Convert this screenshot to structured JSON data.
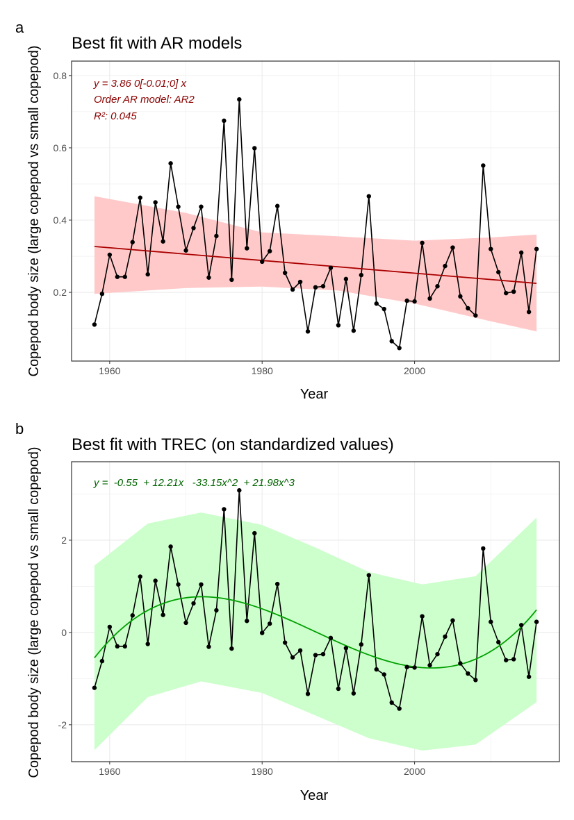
{
  "chart_data": [
    {
      "type": "line",
      "panel_label": "a",
      "title": "Best fit with AR models",
      "xlabel": "Year",
      "ylabel": "Copepod body size (large copepod vs small copepod)",
      "xlim": [
        1955,
        2019
      ],
      "ylim": [
        0.01,
        0.84
      ],
      "xticks": [
        "1960",
        "1980",
        "2000"
      ],
      "yticks": [
        "0.2",
        "0.4",
        "0.6",
        "0.8"
      ],
      "grid": true,
      "annotations": [
        "y = 3.86  0[-0.01;0] x",
        "Order AR model: AR2",
        "R²: 0.045"
      ],
      "colors": {
        "data": "#000000",
        "fit": "#aa0000",
        "band": "#ffc9c9",
        "annotation": "#8b0000"
      },
      "x": [
        1958,
        1959,
        1960,
        1961,
        1962,
        1963,
        1964,
        1965,
        1966,
        1967,
        1968,
        1969,
        1970,
        1971,
        1972,
        1973,
        1974,
        1975,
        1976,
        1977,
        1978,
        1979,
        1980,
        1981,
        1982,
        1983,
        1984,
        1985,
        1986,
        1987,
        1988,
        1989,
        1990,
        1991,
        1992,
        1993,
        1994,
        1995,
        1996,
        1997,
        1998,
        1999,
        2000,
        2001,
        2002,
        2003,
        2004,
        2005,
        2006,
        2007,
        2008,
        2009,
        2010,
        2011,
        2012,
        2013,
        2014,
        2015,
        2016
      ],
      "y": [
        0.111,
        0.196,
        0.304,
        0.243,
        0.243,
        0.339,
        0.462,
        0.25,
        0.449,
        0.341,
        0.557,
        0.437,
        0.316,
        0.378,
        0.437,
        0.241,
        0.356,
        0.675,
        0.235,
        0.734,
        0.322,
        0.599,
        0.285,
        0.314,
        0.439,
        0.254,
        0.208,
        0.229,
        0.092,
        0.214,
        0.217,
        0.268,
        0.109,
        0.237,
        0.094,
        0.248,
        0.466,
        0.169,
        0.154,
        0.065,
        0.046,
        0.177,
        0.175,
        0.337,
        0.183,
        0.217,
        0.273,
        0.324,
        0.189,
        0.156,
        0.136,
        0.551,
        0.32,
        0.256,
        0.198,
        0.202,
        0.31,
        0.146,
        0.32
      ],
      "fit": {
        "x": [
          1958,
          2016
        ],
        "y": [
          0.327,
          0.225
        ]
      },
      "band": {
        "x": [
          1958,
          1970,
          1980,
          1990,
          2000,
          2010,
          2016
        ],
        "upper": [
          0.466,
          0.42,
          0.366,
          0.355,
          0.343,
          0.352,
          0.36
        ],
        "lower": [
          0.196,
          0.212,
          0.216,
          0.205,
          0.169,
          0.12,
          0.092
        ]
      }
    },
    {
      "type": "line",
      "panel_label": "b",
      "title": "Best fit with TREC (on standardized values)",
      "xlabel": "Year",
      "ylabel": "Copepod body size (large copepod vs small copepod)",
      "xlim": [
        1955,
        2019
      ],
      "ylim": [
        -2.8,
        3.7
      ],
      "xticks": [
        "1960",
        "1980",
        "2000"
      ],
      "yticks": [
        "-2",
        "0",
        "2"
      ],
      "grid": true,
      "annotations": [
        "y =  -0.55  + 12.21x   -33.15x^2  + 21.98x^3"
      ],
      "colors": {
        "data": "#000000",
        "fit": "#00a000",
        "band": "#ccffcc",
        "annotation": "#006400"
      },
      "x": [
        1958,
        1959,
        1960,
        1961,
        1962,
        1963,
        1964,
        1965,
        1966,
        1967,
        1968,
        1969,
        1970,
        1971,
        1972,
        1973,
        1974,
        1975,
        1976,
        1977,
        1978,
        1979,
        1980,
        1981,
        1982,
        1983,
        1984,
        1985,
        1986,
        1987,
        1988,
        1989,
        1990,
        1991,
        1992,
        1993,
        1994,
        1995,
        1996,
        1997,
        1998,
        1999,
        2000,
        2001,
        2002,
        2003,
        2004,
        2005,
        2006,
        2007,
        2008,
        2009,
        2010,
        2011,
        2012,
        2013,
        2014,
        2015,
        2016
      ],
      "y": [
        -1.2,
        -0.62,
        0.12,
        -0.3,
        -0.3,
        0.37,
        1.21,
        -0.25,
        1.12,
        0.38,
        1.86,
        1.04,
        0.21,
        0.63,
        1.04,
        -0.31,
        0.48,
        2.67,
        -0.35,
        3.08,
        0.25,
        2.15,
        -0.01,
        0.19,
        1.05,
        -0.22,
        -0.54,
        -0.39,
        -1.33,
        -0.49,
        -0.47,
        -0.12,
        -1.22,
        -0.34,
        -1.32,
        -0.26,
        1.24,
        -0.8,
        -0.91,
        -1.52,
        -1.65,
        -0.75,
        -0.76,
        0.35,
        -0.71,
        -0.47,
        -0.09,
        0.26,
        -0.67,
        -0.89,
        -1.03,
        1.82,
        0.23,
        -0.21,
        -0.6,
        -0.58,
        0.16,
        -0.96,
        0.23
      ],
      "fit": {
        "coefficients": [
          -0.55,
          12.21,
          -33.15,
          21.98
        ]
      },
      "band": {
        "x": [
          1958,
          1965,
          1972,
          1980,
          1987,
          1994,
          2001,
          2008,
          2016
        ],
        "upper": [
          1.45,
          2.36,
          2.6,
          2.33,
          1.84,
          1.31,
          1.04,
          1.22,
          2.49
        ],
        "lower": [
          -2.55,
          -1.4,
          -1.06,
          -1.31,
          -1.8,
          -2.29,
          -2.56,
          -2.43,
          -1.51
        ]
      }
    }
  ]
}
